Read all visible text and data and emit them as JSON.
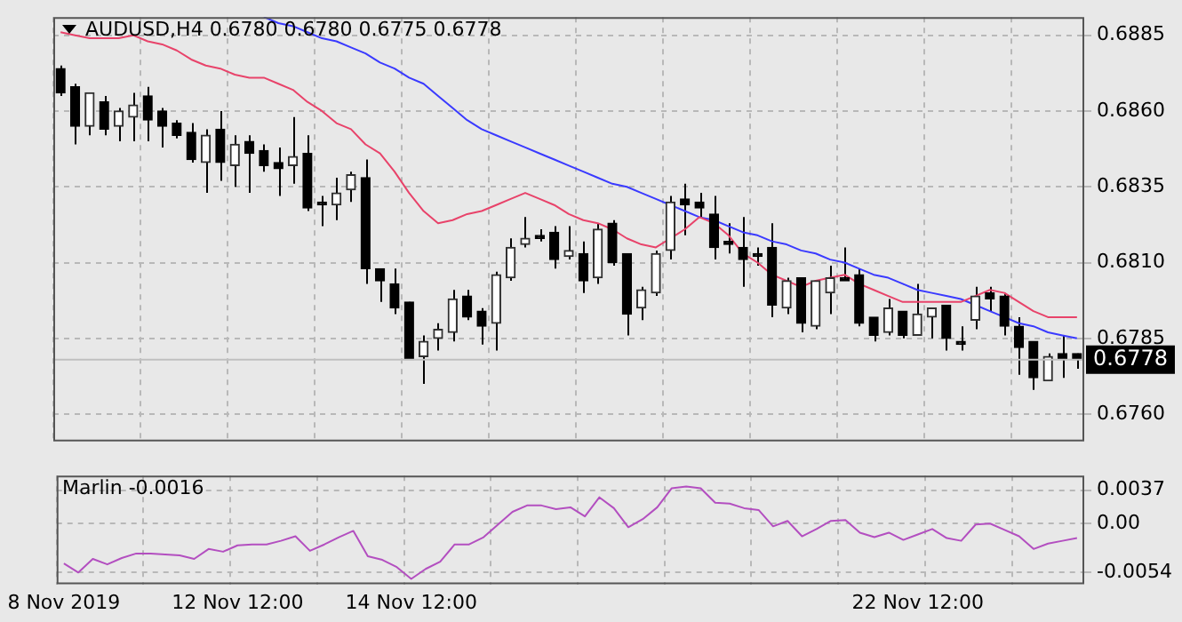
{
  "chart_data": [
    {
      "type": "candlestick",
      "title": "AUDUSD,H4  0.6780 0.6780 0.6775 0.6778",
      "categories": [
        null,
        null,
        null,
        null,
        null,
        null,
        null,
        null,
        null,
        null,
        null,
        null,
        null,
        null,
        null,
        null,
        null,
        null,
        null,
        null,
        null,
        null,
        null,
        null,
        null,
        null,
        null,
        null,
        null,
        null,
        null,
        null,
        null,
        null,
        null,
        null,
        null,
        null,
        null,
        null,
        null,
        null,
        null,
        null,
        null,
        null,
        null,
        null,
        null,
        null,
        null,
        null,
        null,
        null,
        null,
        null,
        null,
        null,
        null,
        null,
        null,
        null,
        null,
        null,
        null,
        null,
        null,
        null,
        null,
        null,
        null
      ],
      "ohlc": [
        [
          0.6874,
          0.6875,
          0.6865,
          0.6866
        ],
        [
          0.6868,
          0.6869,
          0.6849,
          0.6855
        ],
        [
          0.6855,
          0.6866,
          0.6852,
          0.6866
        ],
        [
          0.6863,
          0.6865,
          0.6852,
          0.6854
        ],
        [
          0.6855,
          0.6861,
          0.685,
          0.686
        ],
        [
          0.6858,
          0.6866,
          0.685,
          0.6862
        ],
        [
          0.6865,
          0.6868,
          0.685,
          0.6857
        ],
        [
          0.686,
          0.6861,
          0.6848,
          0.6855
        ],
        [
          0.6856,
          0.6857,
          0.6851,
          0.6852
        ],
        [
          0.6853,
          0.6856,
          0.6843,
          0.6844
        ],
        [
          0.6843,
          0.6854,
          0.6833,
          0.6852
        ],
        [
          0.6854,
          0.686,
          0.6837,
          0.6843
        ],
        [
          0.6842,
          0.6852,
          0.6835,
          0.6849
        ],
        [
          0.685,
          0.6852,
          0.6833,
          0.6846
        ],
        [
          0.6847,
          0.6849,
          0.684,
          0.6842
        ],
        [
          0.6843,
          0.6848,
          0.6832,
          0.6841
        ],
        [
          0.6842,
          0.6858,
          0.6836,
          0.6845
        ],
        [
          0.6846,
          0.6852,
          0.6827,
          0.6828
        ],
        [
          0.683,
          0.6832,
          0.6822,
          0.6829
        ],
        [
          0.6829,
          0.6838,
          0.6824,
          0.6833
        ],
        [
          0.6834,
          0.684,
          0.683,
          0.6839
        ],
        [
          0.6838,
          0.6844,
          0.6803,
          0.6808
        ],
        [
          0.6808,
          0.6808,
          0.6797,
          0.6804
        ],
        [
          0.6803,
          0.6808,
          0.6793,
          0.6795
        ],
        [
          0.6797,
          0.6797,
          0.6778,
          0.6778
        ],
        [
          0.6779,
          0.6786,
          0.677,
          0.6784
        ],
        [
          0.6785,
          0.679,
          0.6781,
          0.6788
        ],
        [
          0.6787,
          0.6801,
          0.6784,
          0.6798
        ],
        [
          0.6799,
          0.6801,
          0.6791,
          0.6792
        ],
        [
          0.6794,
          0.6795,
          0.6783,
          0.6789
        ],
        [
          0.679,
          0.6807,
          0.6781,
          0.6806
        ],
        [
          0.6805,
          0.6818,
          0.6804,
          0.6815
        ],
        [
          0.6816,
          0.6825,
          0.6815,
          0.6818
        ],
        [
          0.6819,
          0.6821,
          0.6817,
          0.6818
        ],
        [
          0.682,
          0.6822,
          0.6808,
          0.6811
        ],
        [
          0.6812,
          0.6822,
          0.6811,
          0.6814
        ],
        [
          0.6813,
          0.6817,
          0.68,
          0.6804
        ],
        [
          0.6805,
          0.6823,
          0.6803,
          0.6821
        ],
        [
          0.6823,
          0.6824,
          0.6809,
          0.681
        ],
        [
          0.6813,
          0.6813,
          0.6786,
          0.6793
        ],
        [
          0.6795,
          0.6802,
          0.6791,
          0.6801
        ],
        [
          0.68,
          0.6814,
          0.6799,
          0.6813
        ],
        [
          0.6814,
          0.6832,
          0.6811,
          0.683
        ],
        [
          0.6831,
          0.6836,
          0.6819,
          0.6829
        ],
        [
          0.683,
          0.6833,
          0.6825,
          0.6828
        ],
        [
          0.6826,
          0.6832,
          0.6811,
          0.6815
        ],
        [
          0.6817,
          0.6823,
          0.6813,
          0.6816
        ],
        [
          0.6815,
          0.6825,
          0.6802,
          0.6811
        ],
        [
          0.6813,
          0.6815,
          0.6809,
          0.6812
        ],
        [
          0.6815,
          0.6823,
          0.6792,
          0.6796
        ],
        [
          0.6795,
          0.6805,
          0.6793,
          0.6804
        ],
        [
          0.6805,
          0.6805,
          0.6787,
          0.679
        ],
        [
          0.6789,
          0.6804,
          0.6788,
          0.6804
        ],
        [
          0.68,
          0.6809,
          0.6793,
          0.6805
        ],
        [
          0.6805,
          0.6815,
          0.6804,
          0.6804
        ],
        [
          0.6806,
          0.6808,
          0.6789,
          0.679
        ],
        [
          0.6792,
          0.6792,
          0.6784,
          0.6786
        ],
        [
          0.6787,
          0.6798,
          0.6786,
          0.6795
        ],
        [
          0.6794,
          0.6794,
          0.6785,
          0.6786
        ],
        [
          0.6786,
          0.6803,
          0.6786,
          0.6793
        ],
        [
          0.6792,
          0.6795,
          0.6785,
          0.6795
        ],
        [
          0.6796,
          0.6796,
          0.6781,
          0.6785
        ],
        [
          0.6784,
          0.6789,
          0.6781,
          0.6783
        ],
        [
          0.6791,
          0.6802,
          0.6788,
          0.6799
        ],
        [
          0.68,
          0.6802,
          0.6794,
          0.6798
        ],
        [
          0.6799,
          0.68,
          0.6786,
          0.6789
        ],
        [
          0.6789,
          0.6792,
          0.6773,
          0.6782
        ],
        [
          0.6784,
          0.6784,
          0.6768,
          0.6772
        ],
        [
          0.6771,
          0.678,
          0.6771,
          0.6779
        ],
        [
          0.678,
          0.6786,
          0.6772,
          0.6778
        ],
        [
          0.678,
          0.678,
          0.6775,
          0.6778
        ]
      ],
      "series": [
        {
          "type": "line",
          "color": "#e8436a",
          "values": [
            0.6886,
            0.6885,
            0.6884,
            0.6884,
            0.6884,
            0.6885,
            0.6883,
            0.6882,
            0.688,
            0.6877,
            0.6875,
            0.6874,
            0.6872,
            0.6871,
            0.6871,
            0.6869,
            0.6867,
            0.6863,
            0.686,
            0.6856,
            0.6854,
            0.6849,
            0.6846,
            0.684,
            0.6833,
            0.6827,
            0.6823,
            0.6824,
            0.6826,
            0.6827,
            0.6829,
            0.6831,
            0.6833,
            0.6831,
            0.6829,
            0.6826,
            0.6824,
            0.6823,
            0.6821,
            0.6818,
            0.6816,
            0.6815,
            0.6818,
            0.6821,
            0.6825,
            0.6823,
            0.6819,
            0.6813,
            0.681,
            0.6806,
            0.6804,
            0.6802,
            0.6804,
            0.6805,
            0.6806,
            0.6803,
            0.6801,
            0.6799,
            0.6797,
            0.6797,
            0.6797,
            0.6797,
            0.6797,
            0.6799,
            0.6801,
            0.68,
            0.6797,
            0.6794,
            0.6792,
            0.6792,
            0.6792
          ]
        },
        {
          "type": "line",
          "color": "#3a3aff",
          "values": [
            null,
            null,
            null,
            null,
            null,
            null,
            null,
            null,
            null,
            null,
            null,
            null,
            null,
            null,
            0.6891,
            0.6889,
            0.6888,
            0.6886,
            0.6884,
            0.6883,
            0.6881,
            0.6879,
            0.6876,
            0.6874,
            0.6871,
            0.6869,
            0.6865,
            0.6861,
            0.6857,
            0.6854,
            0.6852,
            0.685,
            0.6848,
            0.6846,
            0.6844,
            0.6842,
            0.684,
            0.6838,
            0.6836,
            0.6835,
            0.6833,
            0.6831,
            0.6829,
            0.6827,
            0.6825,
            0.6824,
            0.6822,
            0.682,
            0.6819,
            0.6817,
            0.6816,
            0.6814,
            0.6813,
            0.6811,
            0.681,
            0.6808,
            0.6806,
            0.6805,
            0.6803,
            0.6801,
            0.68,
            0.6799,
            0.6798,
            0.6796,
            0.6794,
            0.6792,
            0.679,
            0.6789,
            0.6787,
            0.6786,
            0.6785
          ]
        }
      ],
      "ylim": [
        0.6751,
        0.6891
      ],
      "yticks": [
        {
          "value": 0.676,
          "label": "0.6760"
        },
        {
          "value": 0.6785,
          "label": "0.6785"
        },
        {
          "value": 0.681,
          "label": "0.6810"
        },
        {
          "value": 0.6835,
          "label": "0.6835"
        },
        {
          "value": 0.686,
          "label": "0.6860"
        },
        {
          "value": 0.6885,
          "label": "0.6885"
        }
      ],
      "grid": true,
      "tick_labels": "y",
      "ref_lines": [
        {
          "axis": "y",
          "value": 0.6778,
          "label": "0.6778",
          "color": "#c0c0c0"
        }
      ]
    },
    {
      "type": "line",
      "title": "Marlin -0.0016",
      "categories": [
        "8 Nov 2019",
        null,
        null,
        null,
        null,
        null,
        null,
        null,
        null,
        null,
        null,
        null,
        "12 Nov 12:00",
        null,
        null,
        null,
        null,
        null,
        null,
        null,
        null,
        null,
        null,
        null,
        "14 Nov 12:00",
        null,
        null,
        null,
        null,
        null,
        null,
        null,
        null,
        null,
        null,
        null,
        null,
        null,
        null,
        null,
        null,
        null,
        null,
        null,
        null,
        null,
        null,
        null,
        null,
        null,
        null,
        null,
        null,
        null,
        null,
        null,
        null,
        null,
        null,
        "22 Nov 12:00",
        null,
        null,
        null,
        null,
        null,
        null,
        null,
        null,
        null,
        null,
        null
      ],
      "series": [
        {
          "color": "#b34fc0",
          "values": [
            -0.0044,
            -0.0054,
            -0.0039,
            -0.0045,
            -0.0038,
            -0.0033,
            -0.0033,
            -0.0034,
            -0.0035,
            -0.0039,
            -0.0028,
            -0.0031,
            -0.0024,
            -0.0023,
            -0.0023,
            -0.0019,
            -0.0014,
            -0.003,
            -0.0023,
            -0.0015,
            -0.0008,
            -0.0036,
            -0.004,
            -0.0048,
            -0.0061,
            -0.005,
            -0.0042,
            -0.0023,
            -0.0023,
            -0.0015,
            -0.0001,
            0.0013,
            0.002,
            0.002,
            0.0016,
            0.0018,
            0.0008,
            0.0029,
            0.0017,
            -0.0004,
            0.0005,
            0.0018,
            0.0039,
            0.0041,
            0.0039,
            0.0023,
            0.0022,
            0.0017,
            0.0015,
            -0.0003,
            0.0003,
            -0.0014,
            -0.0006,
            0.0003,
            0.0004,
            -0.001,
            -0.0015,
            -0.001,
            -0.0018,
            -0.0012,
            -0.0006,
            -0.0016,
            -0.0019,
            -0.0001,
            0,
            -0.0007,
            -0.0014,
            -0.0028,
            -0.0022,
            -0.0019,
            -0.0016
          ]
        }
      ],
      "ylim": [
        -0.0067,
        0.0053
      ],
      "yticks": [
        -0.0054,
        {
          "value": 0,
          "label": "0.00"
        },
        0.0037
      ],
      "grid": true
    }
  ]
}
